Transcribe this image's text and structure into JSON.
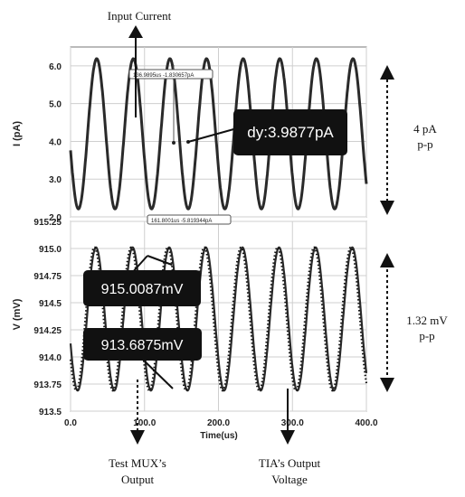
{
  "chart_data": [
    {
      "type": "line",
      "ylabel": "I (pA)",
      "ylim": [
        2.0,
        6.5
      ],
      "yticks": [
        "6.0",
        "5.0",
        "4.0",
        "3.0",
        "2.0"
      ],
      "xlim": [
        0,
        400
      ],
      "grid": true,
      "series": [
        {
          "name": "Input Current",
          "shape": "sine",
          "offset_pA": 4.2,
          "amplitude_pA": 1.99,
          "period_us": 49.5,
          "phase_us": 23,
          "x_start_us": 0,
          "x_end_us": 400
        }
      ],
      "markers": [
        {
          "label": "136.9895us -1.830657pA",
          "x": 136.99,
          "y": 6.15
        },
        {
          "label": "161.8001us -5.819344pA",
          "x": 161.8,
          "y": 2.18
        }
      ],
      "annotation_dy": "dy:3.9877pA",
      "pp_label_line1": "4 pA",
      "pp_label_line2": "p-p"
    },
    {
      "type": "line",
      "ylabel": "V (mV)",
      "xlabel": "Time(us)",
      "ylim": [
        913.5,
        915.25
      ],
      "yticks": [
        "915.25",
        "915.0",
        "914.75",
        "914.5",
        "914.25",
        "914.0",
        "913.75",
        "913.5"
      ],
      "xlim": [
        0,
        400
      ],
      "xticks": [
        "0.0",
        "100.0",
        "200.0",
        "300.0",
        "400.0"
      ],
      "grid": true,
      "series": [
        {
          "name": "Test MUX's Output",
          "style": "dotted",
          "offset_mV": 914.35,
          "amplitude_mV": 0.66,
          "period_us": 49.5,
          "phase_us": 20
        },
        {
          "name": "TIA's Output Voltage",
          "style": "solid",
          "offset_mV": 914.35,
          "amplitude_mV": 0.66,
          "period_us": 49.5,
          "phase_us": 22
        }
      ],
      "annotation_max": "915.0087mV",
      "annotation_min": "913.6875mV",
      "pp_label_line1": "1.32 mV",
      "pp_label_line2": "p-p"
    }
  ],
  "labels": {
    "input_current": "Input Current",
    "test_mux_line1": "Test MUX’s",
    "test_mux_line2": "Output",
    "tia_line1": "TIA’s Output",
    "tia_line2": "Voltage"
  }
}
